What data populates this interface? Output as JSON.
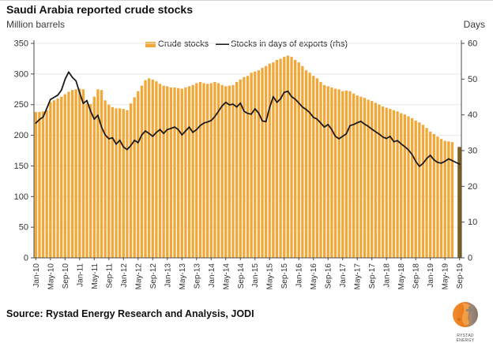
{
  "header": {
    "title": "Saudi Arabia reported crude stocks",
    "left_axis_label": "Million barrels",
    "right_axis_label": "Days"
  },
  "legend": {
    "bar": {
      "label": "Crude stocks",
      "color": "#F2A838"
    },
    "line": {
      "label": "Stocks in days of exports (rhs)",
      "color": "#1B1B1B"
    }
  },
  "source": {
    "text": "Source: Rystad Energy Research and Analysis, JODI"
  },
  "logo": {
    "name": "Rystad Energy",
    "text": "RYSTAD ENERGY",
    "globe_orange": "#ED7E23",
    "globe_gray": "#8C8275"
  },
  "chart_data": {
    "type": "bar+line",
    "title": "Saudi Arabia reported crude stocks",
    "x_tick_every": 4,
    "grid": true,
    "legend_position": "top-center",
    "left_axis": {
      "label": "Million barrels",
      "min": 0,
      "max": 350,
      "ticks": [
        0,
        50,
        100,
        150,
        200,
        250,
        300,
        350
      ]
    },
    "right_axis": {
      "label": "Days",
      "min": 0,
      "max": 60,
      "ticks": [
        0,
        10,
        20,
        30,
        40,
        50,
        60
      ]
    },
    "categories": [
      "Jan-10",
      "Feb-10",
      "Mar-10",
      "Apr-10",
      "May-10",
      "Jun-10",
      "Jul-10",
      "Aug-10",
      "Sep-10",
      "Oct-10",
      "Nov-10",
      "Dec-10",
      "Jan-11",
      "Feb-11",
      "Mar-11",
      "Apr-11",
      "May-11",
      "Jun-11",
      "Jul-11",
      "Aug-11",
      "Sep-11",
      "Oct-11",
      "Nov-11",
      "Dec-11",
      "Jan-12",
      "Feb-12",
      "Mar-12",
      "Apr-12",
      "May-12",
      "Jun-12",
      "Jul-12",
      "Aug-12",
      "Sep-12",
      "Oct-12",
      "Nov-12",
      "Dec-12",
      "Jan-13",
      "Feb-13",
      "Mar-13",
      "Apr-13",
      "May-13",
      "Jun-13",
      "Jul-13",
      "Aug-13",
      "Sep-13",
      "Oct-13",
      "Nov-13",
      "Dec-13",
      "Jan-14",
      "Feb-14",
      "Mar-14",
      "Apr-14",
      "May-14",
      "Jun-14",
      "Jul-14",
      "Aug-14",
      "Sep-14",
      "Oct-14",
      "Nov-14",
      "Dec-14",
      "Jan-15",
      "Feb-15",
      "Mar-15",
      "Apr-15",
      "May-15",
      "Jun-15",
      "Jul-15",
      "Aug-15",
      "Sep-15",
      "Oct-15",
      "Nov-15",
      "Dec-15",
      "Jan-16",
      "Feb-16",
      "Mar-16",
      "Apr-16",
      "May-16",
      "Jun-16",
      "Jul-16",
      "Aug-16",
      "Sep-16",
      "Oct-16",
      "Nov-16",
      "Dec-16",
      "Jan-17",
      "Feb-17",
      "Mar-17",
      "Apr-17",
      "May-17",
      "Jun-17",
      "Jul-17",
      "Aug-17",
      "Sep-17",
      "Oct-17",
      "Nov-17",
      "Dec-17",
      "Jan-18",
      "Feb-18",
      "Mar-18",
      "Apr-18",
      "May-18",
      "Jun-18",
      "Jul-18",
      "Aug-18",
      "Sep-18",
      "Oct-18",
      "Nov-18",
      "Dec-18",
      "Jan-19",
      "Feb-19",
      "Mar-19",
      "Apr-19",
      "May-19",
      "Jun-19",
      "Jul-19",
      "Aug-19",
      "Sep-19"
    ],
    "series": [
      {
        "name": "Crude stocks",
        "type": "bar",
        "axis": "left",
        "color": "#F2A838",
        "highlight_last": true,
        "highlight_color": "#7F5F1C",
        "values": [
          238,
          238,
          239,
          241,
          254,
          257,
          260,
          263,
          267,
          271,
          274,
          275,
          276,
          275,
          252,
          251,
          263,
          275,
          274,
          257,
          250,
          246,
          244,
          244,
          243,
          241,
          252,
          262,
          272,
          281,
          290,
          293,
          291,
          288,
          284,
          281,
          280,
          278,
          278,
          277,
          276,
          278,
          280,
          282,
          285,
          287,
          285,
          284,
          285,
          287,
          285,
          282,
          280,
          281,
          282,
          287,
          291,
          295,
          297,
          302,
          304,
          306,
          310,
          313,
          317,
          319,
          323,
          325,
          328,
          330,
          328,
          323,
          319,
          313,
          306,
          302,
          297,
          293,
          287,
          282,
          280,
          278,
          276,
          275,
          272,
          273,
          272,
          268,
          265,
          263,
          261,
          258,
          256,
          253,
          250,
          247,
          245,
          243,
          241,
          239,
          236,
          234,
          231,
          228,
          224,
          221,
          217,
          212,
          206,
          202,
          198,
          194,
          191,
          190,
          189,
          null,
          181
        ]
      },
      {
        "name": "Stocks in days of exports (rhs)",
        "type": "line",
        "axis": "right",
        "color": "#1B1B1B",
        "values": [
          37.7,
          38.7,
          39.4,
          41.8,
          44.3,
          44.9,
          45.5,
          46.9,
          49.9,
          52.0,
          50.5,
          49.5,
          46.2,
          43.2,
          44.0,
          41.0,
          38.8,
          39.9,
          36.6,
          34.4,
          33.3,
          33.6,
          31.8,
          32.9,
          31.0,
          30.3,
          31.4,
          32.9,
          32.2,
          34.4,
          35.5,
          34.8,
          34.0,
          35.1,
          35.9,
          34.8,
          35.9,
          36.2,
          36.6,
          35.9,
          34.4,
          35.5,
          36.6,
          35.1,
          35.9,
          37.0,
          37.7,
          38.0,
          38.4,
          39.5,
          41.0,
          42.5,
          43.5,
          42.8,
          43.0,
          42.2,
          43.3,
          41.0,
          40.4,
          40.2,
          41.7,
          40.5,
          38.3,
          38.1,
          42.0,
          45.1,
          43.5,
          44.5,
          46.3,
          46.6,
          45.1,
          44.4,
          43.3,
          42.2,
          41.5,
          40.6,
          39.3,
          38.8,
          37.7,
          36.6,
          37.3,
          35.9,
          34.0,
          33.3,
          34.0,
          34.7,
          37.0,
          37.3,
          37.8,
          38.2,
          37.4,
          36.8,
          36.0,
          35.3,
          34.6,
          33.8,
          33.4,
          34.0,
          32.5,
          32.8,
          31.9,
          31.1,
          30.2,
          28.9,
          27.0,
          25.6,
          26.4,
          27.8,
          28.7,
          27.4,
          26.7,
          26.5,
          27.0,
          27.7,
          27.2,
          26.7,
          26.2
        ]
      }
    ]
  }
}
